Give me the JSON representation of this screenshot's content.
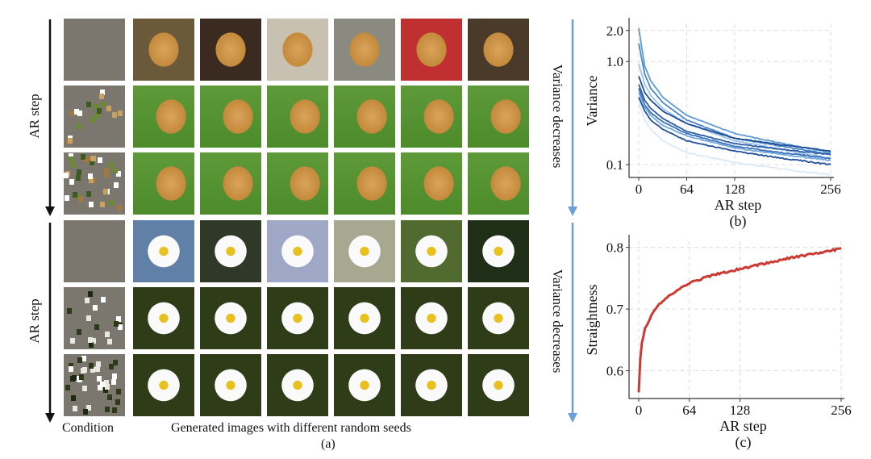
{
  "panel_a": {
    "left_label_top": "AR step",
    "left_label_bottom": "AR step",
    "right_label_top": "Variance decreases",
    "right_label_bottom": "Variance decreases",
    "col_condition": "Condition",
    "col_generated": "Generated images with different random seeds",
    "caption": "(a)",
    "groups": [
      {
        "subject": "dog",
        "rows": 3,
        "cols": 6
      },
      {
        "subject": "daisy",
        "rows": 3,
        "cols": 6
      }
    ]
  },
  "chart_data": [
    {
      "type": "line",
      "caption": "(b)",
      "xlabel": "AR step",
      "ylabel": "Variance",
      "yscale": "log",
      "xticks": [
        "0",
        "64",
        "128",
        "256"
      ],
      "yticks": [
        "2.0",
        "1.0",
        "0.1"
      ],
      "xlim": [
        0,
        256
      ],
      "ylim": [
        0.075,
        2.3
      ],
      "grid": true,
      "x": [
        0,
        8,
        16,
        32,
        64,
        128,
        192,
        256
      ],
      "series": [
        {
          "name": "s1",
          "color": "#5b9bd5",
          "values": [
            2.1,
            0.9,
            0.65,
            0.45,
            0.3,
            0.2,
            0.16,
            0.13
          ]
        },
        {
          "name": "s2",
          "color": "#4a86c8",
          "values": [
            1.5,
            0.75,
            0.55,
            0.4,
            0.27,
            0.18,
            0.15,
            0.125
          ]
        },
        {
          "name": "s3",
          "color": "#9cc3e6",
          "values": [
            0.95,
            0.6,
            0.47,
            0.35,
            0.25,
            0.17,
            0.14,
            0.115
          ]
        },
        {
          "name": "s4",
          "color": "#1f4e96",
          "values": [
            0.72,
            0.5,
            0.42,
            0.33,
            0.25,
            0.18,
            0.155,
            0.135
          ]
        },
        {
          "name": "s5",
          "color": "#2c5ea8",
          "values": [
            0.6,
            0.42,
            0.35,
            0.28,
            0.21,
            0.16,
            0.14,
            0.125
          ]
        },
        {
          "name": "s6",
          "color": "#3a70b8",
          "values": [
            0.55,
            0.38,
            0.32,
            0.26,
            0.2,
            0.15,
            0.13,
            0.115
          ]
        },
        {
          "name": "s7",
          "color": "#6fa8dc",
          "values": [
            0.5,
            0.36,
            0.3,
            0.24,
            0.19,
            0.145,
            0.125,
            0.11
          ]
        },
        {
          "name": "s8",
          "color": "#234f9a",
          "values": [
            0.45,
            0.33,
            0.27,
            0.22,
            0.17,
            0.135,
            0.115,
            0.1
          ]
        },
        {
          "name": "s9",
          "color": "#dce9f7",
          "values": [
            0.4,
            0.27,
            0.22,
            0.17,
            0.13,
            0.105,
            0.09,
            0.08
          ]
        }
      ]
    },
    {
      "type": "line",
      "caption": "(c)",
      "xlabel": "AR step",
      "ylabel": "Straightness",
      "xticks": [
        "0",
        "64",
        "128",
        "256"
      ],
      "yticks": [
        "0.8",
        "0.7",
        "0.6"
      ],
      "xlim": [
        0,
        256
      ],
      "ylim": [
        0.555,
        0.81
      ],
      "grid": true,
      "x": [
        0,
        2,
        4,
        8,
        16,
        24,
        32,
        48,
        64,
        96,
        128,
        160,
        192,
        224,
        256
      ],
      "series": [
        {
          "name": "straightness",
          "color": "#cc3b33",
          "values": [
            0.565,
            0.62,
            0.645,
            0.668,
            0.69,
            0.705,
            0.715,
            0.73,
            0.742,
            0.756,
            0.765,
            0.774,
            0.783,
            0.79,
            0.798
          ]
        }
      ]
    }
  ]
}
